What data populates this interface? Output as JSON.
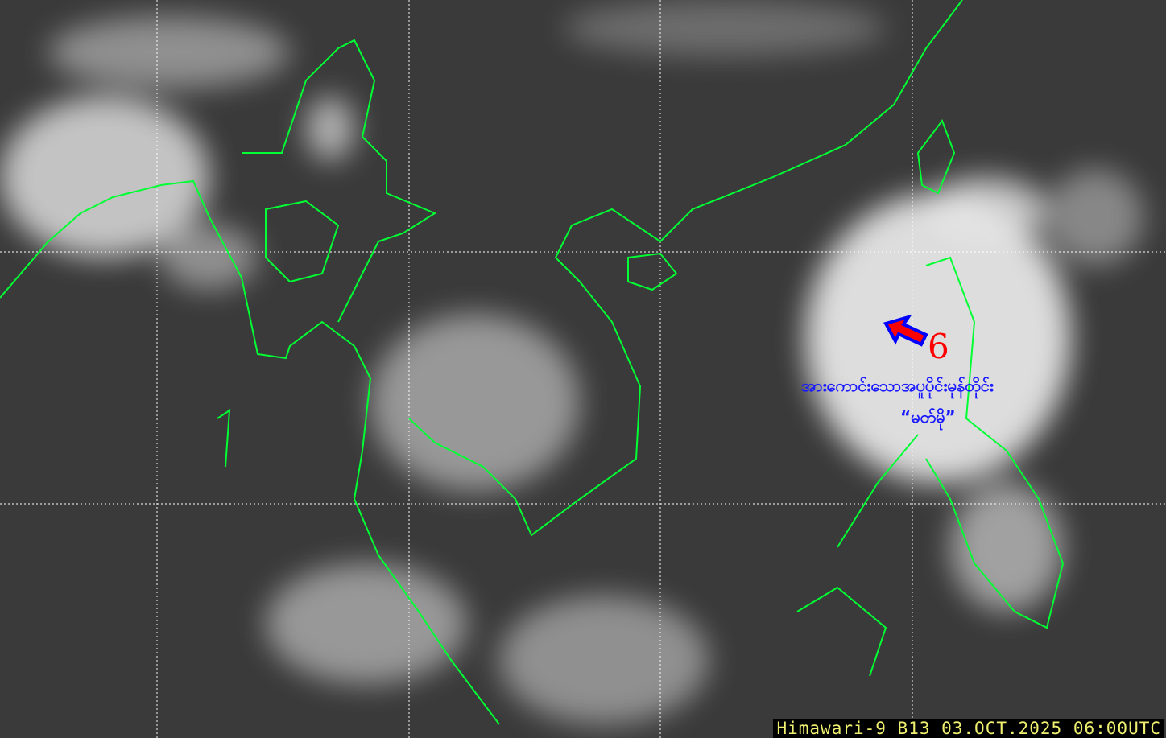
{
  "image": {
    "type": "satellite-infrared",
    "caption": "Himawari-9 B13 03.OCT.2025 06:00UTC",
    "coastline_color": "#00ff33",
    "grid_color": "#ffffff"
  },
  "annotation": {
    "storm_label": "အားကောင်းသောအပူပိုင်းမုန်တိုင်း",
    "storm_name": "“မတ်မို”",
    "cyclone_symbol_color": "#ff0000",
    "arrow_colors": {
      "fill": "#ff0000",
      "outline": "#0000ff"
    },
    "arrow_direction": "northwest"
  }
}
